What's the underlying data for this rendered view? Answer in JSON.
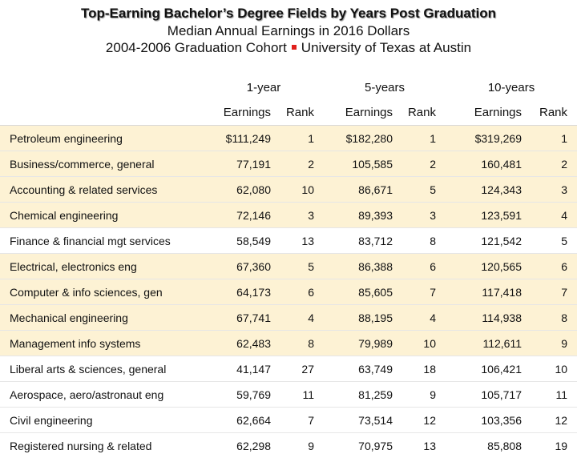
{
  "header": {
    "title": "Top-Earning Bachelor’s Degree Fields by Years Post Graduation",
    "subtitle": "Median Annual Earnings in 2016 Dollars",
    "cohort": "2004-2006 Graduation Cohort",
    "institution": "University of Texas at Austin"
  },
  "colors": {
    "highlight_row": "#fdf2d4",
    "separator": "#e0201c"
  },
  "table": {
    "groups": [
      "1-year",
      "5-years",
      "10-years"
    ],
    "sub_headers": [
      "Earnings",
      "Rank",
      "Earnings",
      "Rank",
      "Earnings",
      "Rank"
    ],
    "rows": [
      {
        "field": "Petroleum engineering",
        "e1": "$111,249",
        "r1": "1",
        "e5": "$182,280",
        "r5": "1",
        "e10": "$319,269",
        "r10": "1",
        "highlight": true
      },
      {
        "field": "Business/commerce, general",
        "e1": "77,191",
        "r1": "2",
        "e5": "105,585",
        "r5": "2",
        "e10": "160,481",
        "r10": "2",
        "highlight": true
      },
      {
        "field": "Accounting & related services",
        "e1": "62,080",
        "r1": "10",
        "e5": "86,671",
        "r5": "5",
        "e10": "124,343",
        "r10": "3",
        "highlight": true
      },
      {
        "field": "Chemical engineering",
        "e1": "72,146",
        "r1": "3",
        "e5": "89,393",
        "r5": "3",
        "e10": "123,591",
        "r10": "4",
        "highlight": true
      },
      {
        "field": "Finance & financial mgt services",
        "e1": "58,549",
        "r1": "13",
        "e5": "83,712",
        "r5": "8",
        "e10": "121,542",
        "r10": "5",
        "highlight": false
      },
      {
        "field": "Electrical, electronics eng",
        "e1": "67,360",
        "r1": "5",
        "e5": "86,388",
        "r5": "6",
        "e10": "120,565",
        "r10": "6",
        "highlight": true
      },
      {
        "field": "Computer & info sciences, gen",
        "e1": "64,173",
        "r1": "6",
        "e5": "85,605",
        "r5": "7",
        "e10": "117,418",
        "r10": "7",
        "highlight": true
      },
      {
        "field": "Mechanical engineering",
        "e1": "67,741",
        "r1": "4",
        "e5": "88,195",
        "r5": "4",
        "e10": "114,938",
        "r10": "8",
        "highlight": true
      },
      {
        "field": "Management info systems",
        "e1": "62,483",
        "r1": "8",
        "e5": "79,989",
        "r5": "10",
        "e10": "112,611",
        "r10": "9",
        "highlight": true
      },
      {
        "field": "Liberal arts & sciences, general",
        "e1": "41,147",
        "r1": "27",
        "e5": "63,749",
        "r5": "18",
        "e10": "106,421",
        "r10": "10",
        "highlight": false
      },
      {
        "field": "Aerospace, aero/astronaut eng",
        "e1": "59,769",
        "r1": "11",
        "e5": "81,259",
        "r5": "9",
        "e10": "105,717",
        "r10": "11",
        "highlight": false
      },
      {
        "field": "Civil engineering",
        "e1": "62,664",
        "r1": "7",
        "e5": "73,514",
        "r5": "12",
        "e10": "103,356",
        "r10": "12",
        "highlight": false
      },
      {
        "field": "Registered nursing & related",
        "e1": "62,298",
        "r1": "9",
        "e5": "70,975",
        "r5": "13",
        "e10": "85,808",
        "r10": "19",
        "highlight": false
      }
    ]
  }
}
